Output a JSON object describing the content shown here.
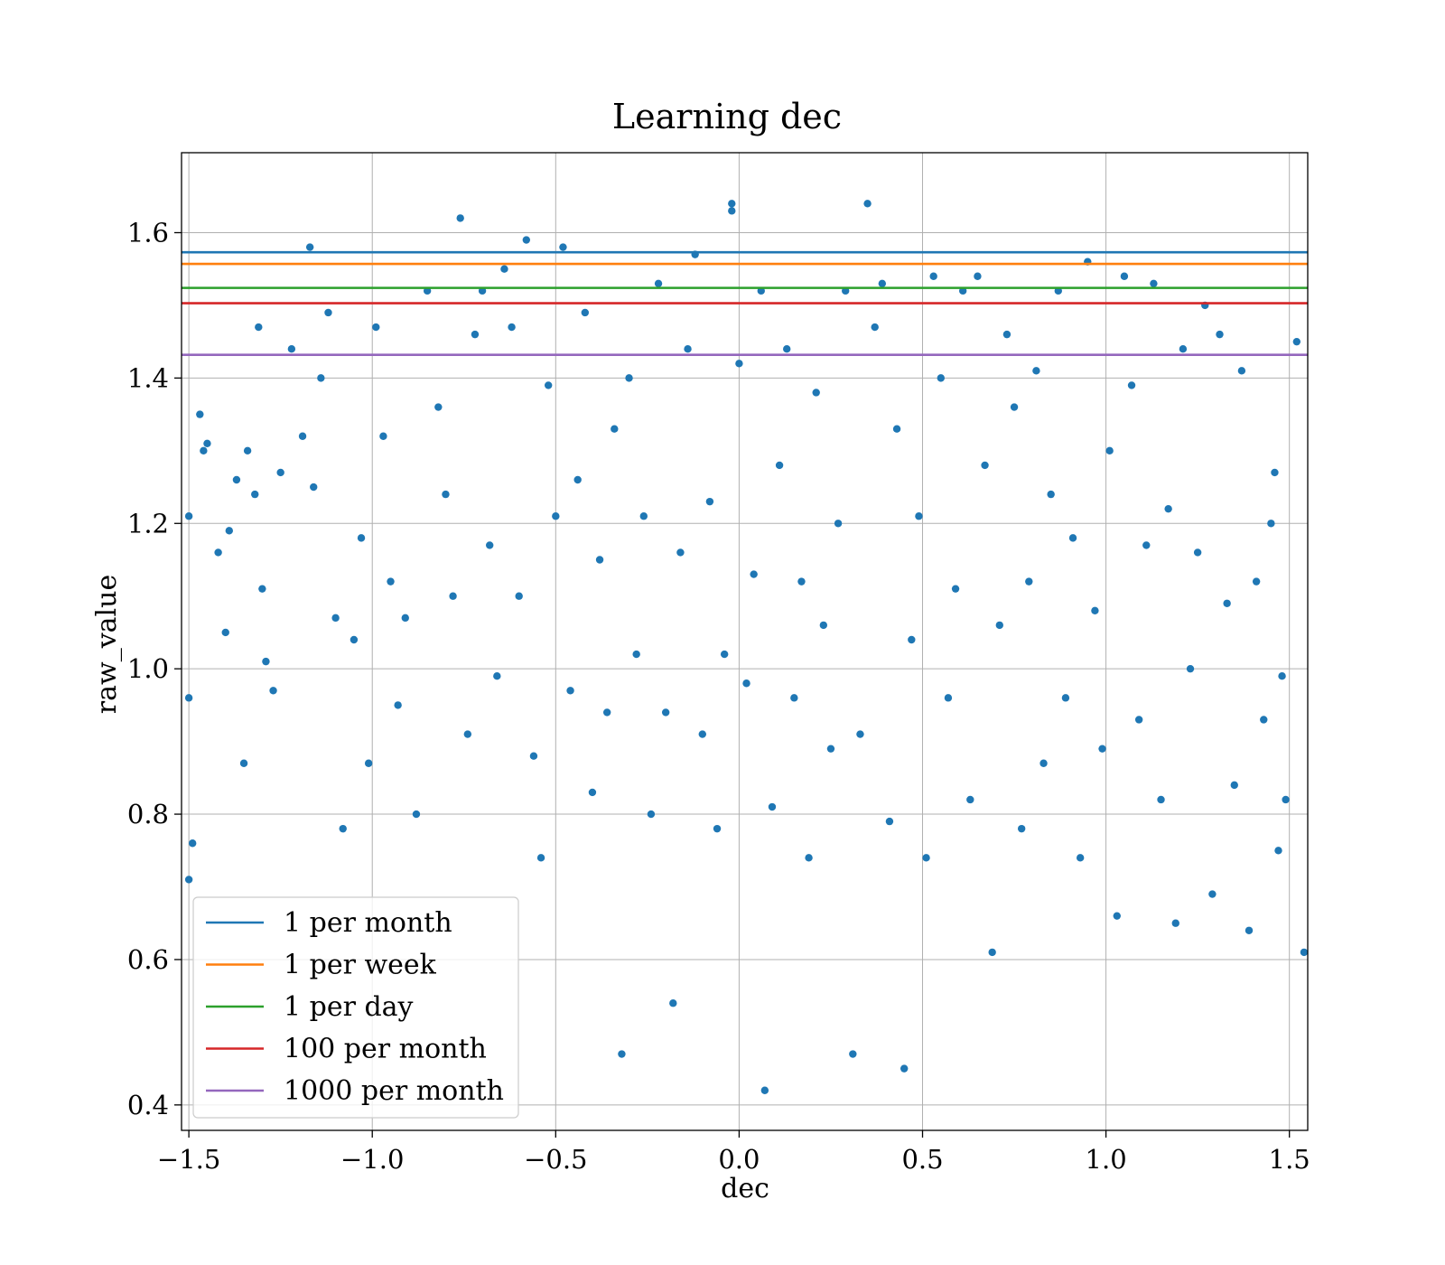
{
  "chart_data": {
    "type": "scatter",
    "title": "Learning dec",
    "xlabel": "dec",
    "ylabel": "raw_value",
    "xlim": [
      -1.52,
      1.55
    ],
    "ylim": [
      0.365,
      1.71
    ],
    "x_ticks": [
      -1.5,
      -1.0,
      -0.5,
      0.0,
      0.5,
      1.0,
      1.5
    ],
    "x_tick_labels": [
      "−1.5",
      "−1.0",
      "−0.5",
      "0.0",
      "0.5",
      "1.0",
      "1.5"
    ],
    "y_ticks": [
      0.4,
      0.6,
      0.8,
      1.0,
      1.2,
      1.4,
      1.6
    ],
    "y_tick_labels": [
      "0.4",
      "0.6",
      "0.8",
      "1.0",
      "1.2",
      "1.4",
      "1.6"
    ],
    "grid": true,
    "legend_position": "lower-left",
    "point_color": "#1f77b4",
    "points": [
      [
        -1.5,
        1.21
      ],
      [
        -1.5,
        0.96
      ],
      [
        -1.5,
        0.71
      ],
      [
        -1.49,
        0.76
      ],
      [
        -1.47,
        1.35
      ],
      [
        -1.46,
        1.3
      ],
      [
        -1.45,
        1.31
      ],
      [
        -1.42,
        1.16
      ],
      [
        -1.4,
        1.05
      ],
      [
        -1.39,
        1.19
      ],
      [
        -1.37,
        1.26
      ],
      [
        -1.35,
        0.87
      ],
      [
        -1.34,
        1.3
      ],
      [
        -1.32,
        1.24
      ],
      [
        -1.31,
        1.47
      ],
      [
        -1.3,
        1.11
      ],
      [
        -1.29,
        1.01
      ],
      [
        -1.27,
        0.97
      ],
      [
        -1.25,
        1.27
      ],
      [
        -1.22,
        1.44
      ],
      [
        -1.19,
        1.32
      ],
      [
        -1.17,
        1.58
      ],
      [
        -1.16,
        1.25
      ],
      [
        -1.14,
        1.4
      ],
      [
        -1.12,
        1.49
      ],
      [
        -1.1,
        1.07
      ],
      [
        -1.08,
        0.78
      ],
      [
        -1.05,
        1.04
      ],
      [
        -1.03,
        1.18
      ],
      [
        -1.01,
        0.87
      ],
      [
        -0.99,
        1.47
      ],
      [
        -0.97,
        1.32
      ],
      [
        -0.95,
        1.12
      ],
      [
        -0.93,
        0.95
      ],
      [
        -0.91,
        1.07
      ],
      [
        -0.88,
        0.8
      ],
      [
        -0.85,
        1.52
      ],
      [
        -0.82,
        1.36
      ],
      [
        -0.8,
        1.24
      ],
      [
        -0.78,
        1.1
      ],
      [
        -0.76,
        1.62
      ],
      [
        -0.74,
        0.91
      ],
      [
        -0.72,
        1.46
      ],
      [
        -0.7,
        1.52
      ],
      [
        -0.68,
        1.17
      ],
      [
        -0.66,
        0.99
      ],
      [
        -0.64,
        1.55
      ],
      [
        -0.62,
        1.47
      ],
      [
        -0.6,
        1.1
      ],
      [
        -0.58,
        1.59
      ],
      [
        -0.56,
        0.88
      ],
      [
        -0.54,
        0.74
      ],
      [
        -0.52,
        1.39
      ],
      [
        -0.5,
        1.21
      ],
      [
        -0.48,
        1.58
      ],
      [
        -0.46,
        0.97
      ],
      [
        -0.44,
        1.26
      ],
      [
        -0.42,
        1.49
      ],
      [
        -0.4,
        0.83
      ],
      [
        -0.38,
        1.15
      ],
      [
        -0.36,
        0.94
      ],
      [
        -0.34,
        1.33
      ],
      [
        -0.32,
        0.47
      ],
      [
        -0.3,
        1.4
      ],
      [
        -0.28,
        1.02
      ],
      [
        -0.26,
        1.21
      ],
      [
        -0.24,
        0.8
      ],
      [
        -0.22,
        1.53
      ],
      [
        -0.2,
        0.94
      ],
      [
        -0.18,
        0.54
      ],
      [
        -0.16,
        1.16
      ],
      [
        -0.14,
        1.44
      ],
      [
        -0.12,
        1.57
      ],
      [
        -0.1,
        0.91
      ],
      [
        -0.08,
        1.23
      ],
      [
        -0.06,
        0.78
      ],
      [
        -0.04,
        1.02
      ],
      [
        -0.02,
        1.63
      ],
      [
        -0.02,
        1.64
      ],
      [
        0.0,
        1.42
      ],
      [
        0.02,
        0.98
      ],
      [
        0.04,
        1.13
      ],
      [
        0.06,
        1.52
      ],
      [
        0.07,
        0.42
      ],
      [
        0.09,
        0.81
      ],
      [
        0.11,
        1.28
      ],
      [
        0.13,
        1.44
      ],
      [
        0.15,
        0.96
      ],
      [
        0.17,
        1.12
      ],
      [
        0.19,
        0.74
      ],
      [
        0.21,
        1.38
      ],
      [
        0.23,
        1.06
      ],
      [
        0.25,
        0.89
      ],
      [
        0.27,
        1.2
      ],
      [
        0.29,
        1.52
      ],
      [
        0.31,
        0.47
      ],
      [
        0.33,
        0.91
      ],
      [
        0.35,
        1.64
      ],
      [
        0.37,
        1.47
      ],
      [
        0.39,
        1.53
      ],
      [
        0.41,
        0.79
      ],
      [
        0.43,
        1.33
      ],
      [
        0.45,
        0.45
      ],
      [
        0.47,
        1.04
      ],
      [
        0.49,
        1.21
      ],
      [
        0.51,
        0.74
      ],
      [
        0.53,
        1.54
      ],
      [
        0.55,
        1.4
      ],
      [
        0.57,
        0.96
      ],
      [
        0.59,
        1.11
      ],
      [
        0.61,
        1.52
      ],
      [
        0.63,
        0.82
      ],
      [
        0.65,
        1.54
      ],
      [
        0.67,
        1.28
      ],
      [
        0.69,
        0.61
      ],
      [
        0.71,
        1.06
      ],
      [
        0.73,
        1.46
      ],
      [
        0.75,
        1.36
      ],
      [
        0.77,
        0.78
      ],
      [
        0.79,
        1.12
      ],
      [
        0.81,
        1.41
      ],
      [
        0.83,
        0.87
      ],
      [
        0.85,
        1.24
      ],
      [
        0.87,
        1.52
      ],
      [
        0.89,
        0.96
      ],
      [
        0.91,
        1.18
      ],
      [
        0.93,
        0.74
      ],
      [
        0.95,
        1.56
      ],
      [
        0.97,
        1.08
      ],
      [
        0.99,
        0.89
      ],
      [
        1.01,
        1.3
      ],
      [
        1.03,
        0.66
      ],
      [
        1.05,
        1.54
      ],
      [
        1.07,
        1.39
      ],
      [
        1.09,
        0.93
      ],
      [
        1.11,
        1.17
      ],
      [
        1.13,
        1.53
      ],
      [
        1.15,
        0.82
      ],
      [
        1.17,
        1.22
      ],
      [
        1.19,
        0.65
      ],
      [
        1.21,
        1.44
      ],
      [
        1.23,
        1.0
      ],
      [
        1.25,
        1.16
      ],
      [
        1.27,
        1.5
      ],
      [
        1.29,
        0.69
      ],
      [
        1.31,
        1.46
      ],
      [
        1.33,
        1.09
      ],
      [
        1.35,
        0.84
      ],
      [
        1.37,
        1.41
      ],
      [
        1.39,
        0.64
      ],
      [
        1.41,
        1.12
      ],
      [
        1.43,
        0.93
      ],
      [
        1.45,
        1.2
      ],
      [
        1.46,
        1.27
      ],
      [
        1.47,
        0.75
      ],
      [
        1.48,
        0.99
      ],
      [
        1.49,
        0.82
      ],
      [
        1.52,
        1.45
      ],
      [
        1.54,
        0.61
      ]
    ],
    "series": [
      {
        "name": "1 per month",
        "type": "hline",
        "y": 1.573,
        "color": "#1f77b4"
      },
      {
        "name": "1 per week",
        "type": "hline",
        "y": 1.557,
        "color": "#ff7f0e"
      },
      {
        "name": "1 per day",
        "type": "hline",
        "y": 1.524,
        "color": "#2ca02c"
      },
      {
        "name": "100 per month",
        "type": "hline",
        "y": 1.503,
        "color": "#d62728"
      },
      {
        "name": "1000 per month",
        "type": "hline",
        "y": 1.432,
        "color": "#9467bd"
      }
    ]
  }
}
